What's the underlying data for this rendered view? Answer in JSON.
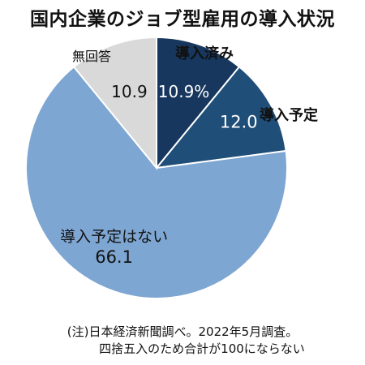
{
  "chart_data": {
    "type": "pie",
    "title": "国内企業のジョブ型雇用の導入状況",
    "slices": [
      {
        "label": "導入済み",
        "value": 10.9,
        "value_text": "10.9%",
        "color": "#17375e",
        "text_color": "#ffffff"
      },
      {
        "label": "導入予定",
        "value": 12.0,
        "value_text": "12.0",
        "color": "#1f4e79",
        "text_color": "#ffffff"
      },
      {
        "label": "導入予定はない",
        "value": 66.1,
        "value_text": "66.1",
        "color": "#7ea6d2",
        "text_color": "#111111"
      },
      {
        "label": "無回答",
        "value": 10.9,
        "value_text": "10.9",
        "color": "#d9d9d9",
        "text_color": "#111111"
      }
    ],
    "start": "12 o'clock",
    "direction": "clockwise",
    "unit": "%"
  },
  "note": {
    "line1": "(注)日本経済新聞調べ。2022年5月調査。",
    "line2": "四捨五入のため合計が100にならない"
  }
}
